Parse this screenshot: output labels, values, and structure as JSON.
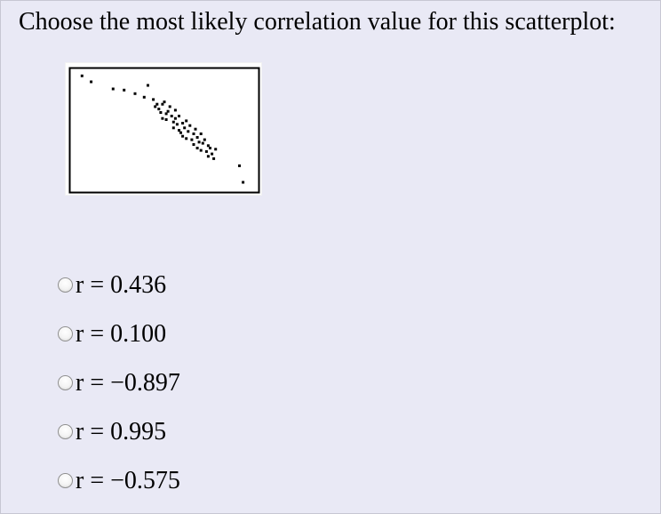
{
  "question": {
    "prompt": "Choose the most likely correlation value for this scatterplot:"
  },
  "options": [
    {
      "label": "r = 0.436"
    },
    {
      "label": "r = 0.100"
    },
    {
      "label": "r = −0.897"
    },
    {
      "label": "r = 0.995"
    },
    {
      "label": "r = −0.575"
    }
  ],
  "chart_data": {
    "type": "scatter",
    "title": "",
    "xlabel": "",
    "ylabel": "",
    "xlim": [
      0,
      100
    ],
    "ylim": [
      0,
      100
    ],
    "grid": false,
    "series": [
      {
        "x": [
          5,
          10,
          22,
          28,
          34,
          39,
          41,
          44,
          45,
          46,
          47,
          48,
          49,
          49,
          50,
          51,
          51,
          52,
          53,
          54,
          55,
          55,
          56,
          56,
          57,
          58,
          58,
          59,
          60,
          60,
          61,
          62,
          62,
          63,
          64,
          65,
          66,
          66,
          67,
          68,
          68,
          69,
          70,
          70,
          71,
          72,
          73,
          74,
          74,
          75,
          76,
          77,
          78,
          91,
          93
        ],
        "y": [
          96,
          91,
          85,
          84,
          81,
          78,
          88,
          76,
          70,
          72,
          68,
          65,
          72,
          60,
          74,
          64,
          59,
          66,
          70,
          62,
          57,
          52,
          60,
          67,
          55,
          50,
          62,
          48,
          56,
          45,
          52,
          58,
          43,
          49,
          54,
          42,
          47,
          38,
          51,
          44,
          35,
          40,
          47,
          33,
          39,
          42,
          32,
          37,
          28,
          35,
          30,
          26,
          34,
          20,
          6
        ]
      }
    ]
  }
}
